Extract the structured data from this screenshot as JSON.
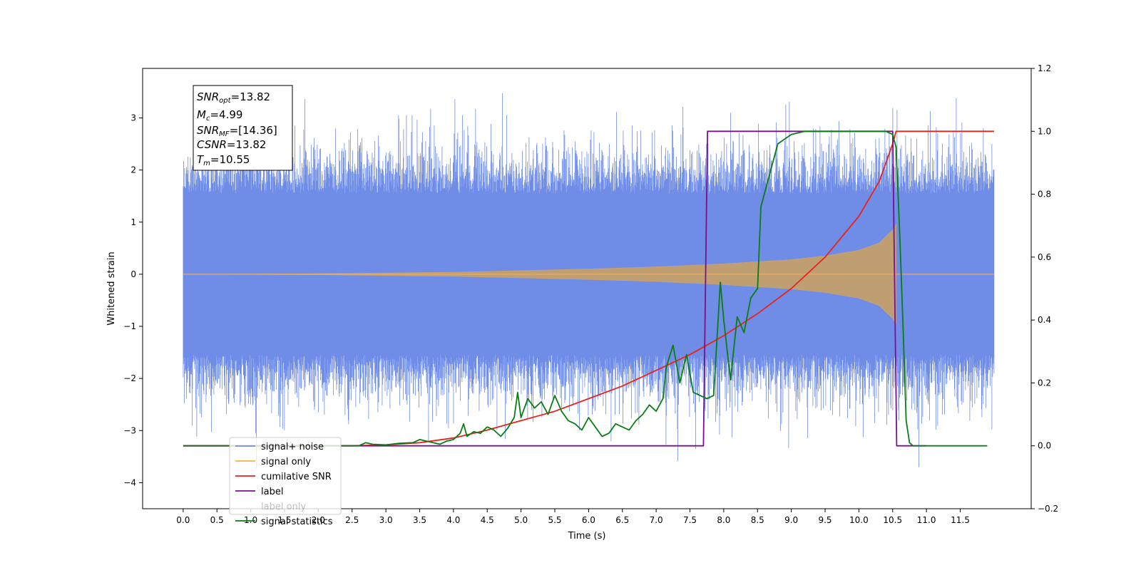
{
  "chart_data": {
    "type": "line",
    "title": "",
    "xlabel": "Time (s)",
    "ylabel": "Whitened strain",
    "xlim": [
      -0.6,
      12.55
    ],
    "ylim": [
      -4.5,
      3.95
    ],
    "ylim_right": [
      -0.2,
      1.2
    ],
    "x_ticks": [
      "0.0",
      "0.5",
      "1.0",
      "1.5",
      "2.0",
      "2.5",
      "3.0",
      "3.5",
      "4.0",
      "4.5",
      "5.0",
      "5.5",
      "6.0",
      "6.5",
      "7.0",
      "7.5",
      "8.0",
      "8.5",
      "9.0",
      "9.5",
      "10.0",
      "10.5",
      "11.0",
      "11.5"
    ],
    "y_ticks_left": [
      "3",
      "2",
      "1",
      "0",
      "−1",
      "−2",
      "−3",
      "−4"
    ],
    "y_ticks_right": [
      "1.2",
      "1.0",
      "0.8",
      "0.6",
      "0.4",
      "0.2",
      "0.0",
      "−0.2"
    ],
    "grid": false,
    "legend_position": "lower-left",
    "info_box": {
      "snr_opt": "=13.82",
      "mc": "=4.99",
      "snr_mf": "=[14.36]",
      "csnr": "=13.82",
      "tm": "=10.55"
    },
    "series": [
      {
        "name": "signal+ noise",
        "axis": "left",
        "color": "#6f8de6",
        "description_values": {
          "x_start": 0.0,
          "x_end": 12.0,
          "typical_range": [
            -2.5,
            2.3
          ],
          "extremes": [
            -4.1,
            3.6
          ]
        }
      },
      {
        "name": "signal only",
        "axis": "left",
        "color": "#f5b041",
        "envelope": {
          "x": [
            0.0,
            2.0,
            4.0,
            6.0,
            7.0,
            8.0,
            9.0,
            9.5,
            10.0,
            10.3,
            10.5,
            10.55
          ],
          "amplitude": [
            0.0,
            0.01,
            0.04,
            0.1,
            0.14,
            0.2,
            0.28,
            0.35,
            0.46,
            0.6,
            0.85,
            0.95
          ]
        }
      },
      {
        "name": "cumilative SNR",
        "axis": "right",
        "color": "#e8231c",
        "x": [
          0.0,
          2.5,
          3.0,
          3.5,
          4.0,
          4.5,
          5.0,
          5.5,
          6.0,
          6.5,
          7.0,
          7.5,
          8.0,
          8.5,
          9.0,
          9.5,
          10.0,
          10.3,
          10.5,
          10.55,
          12.0
        ],
        "y": [
          0.0,
          0.0,
          0.003,
          0.01,
          0.025,
          0.05,
          0.08,
          0.11,
          0.15,
          0.19,
          0.24,
          0.29,
          0.35,
          0.42,
          0.5,
          0.6,
          0.73,
          0.84,
          0.96,
          1.0,
          1.0
        ]
      },
      {
        "name": "label",
        "axis": "right",
        "color": "#7b0f8e",
        "x": [
          0.0,
          7.7,
          7.76,
          10.5,
          10.56,
          11.0
        ],
        "y": [
          0.0,
          0.0,
          1.0,
          1.0,
          0.0,
          0.0
        ]
      },
      {
        "name": "label only",
        "axis": "right",
        "color": "#7b0f8e",
        "hidden": true
      },
      {
        "name": "signal statistics",
        "axis": "right",
        "color": "#0a7d14",
        "x": [
          0.0,
          2.6,
          2.7,
          2.8,
          3.0,
          3.2,
          3.4,
          3.5,
          3.6,
          3.8,
          3.9,
          4.0,
          4.1,
          4.15,
          4.2,
          4.3,
          4.4,
          4.5,
          4.6,
          4.7,
          4.8,
          4.9,
          4.95,
          5.0,
          5.1,
          5.2,
          5.3,
          5.4,
          5.5,
          5.6,
          5.7,
          5.8,
          5.9,
          6.0,
          6.1,
          6.2,
          6.3,
          6.4,
          6.5,
          6.6,
          6.7,
          6.8,
          6.9,
          7.0,
          7.1,
          7.15,
          7.25,
          7.35,
          7.45,
          7.55,
          7.65,
          7.75,
          7.85,
          7.95,
          8.0,
          8.1,
          8.2,
          8.3,
          8.4,
          8.5,
          8.55,
          8.6,
          8.7,
          8.8,
          9.0,
          9.2,
          9.5,
          10.0,
          10.4,
          10.5,
          10.55,
          10.6,
          10.65,
          10.7,
          10.75,
          10.8,
          11.0,
          11.9
        ],
        "y": [
          0.0,
          0.0,
          0.01,
          0.005,
          0.003,
          0.008,
          0.01,
          0.02,
          0.015,
          0.005,
          0.015,
          0.02,
          0.04,
          0.07,
          0.03,
          0.045,
          0.04,
          0.06,
          0.05,
          0.03,
          0.055,
          0.09,
          0.17,
          0.09,
          0.15,
          0.12,
          0.14,
          0.1,
          0.16,
          0.11,
          0.08,
          0.07,
          0.05,
          0.09,
          0.06,
          0.03,
          0.04,
          0.07,
          0.06,
          0.05,
          0.08,
          0.1,
          0.13,
          0.11,
          0.15,
          0.25,
          0.32,
          0.2,
          0.29,
          0.17,
          0.16,
          0.15,
          0.16,
          0.52,
          0.4,
          0.21,
          0.41,
          0.36,
          0.47,
          0.5,
          0.76,
          0.8,
          0.88,
          0.96,
          0.99,
          1.0,
          1.0,
          1.0,
          1.0,
          0.99,
          0.95,
          0.7,
          0.4,
          0.08,
          0.01,
          0.0,
          0.0,
          0.0
        ]
      }
    ]
  }
}
